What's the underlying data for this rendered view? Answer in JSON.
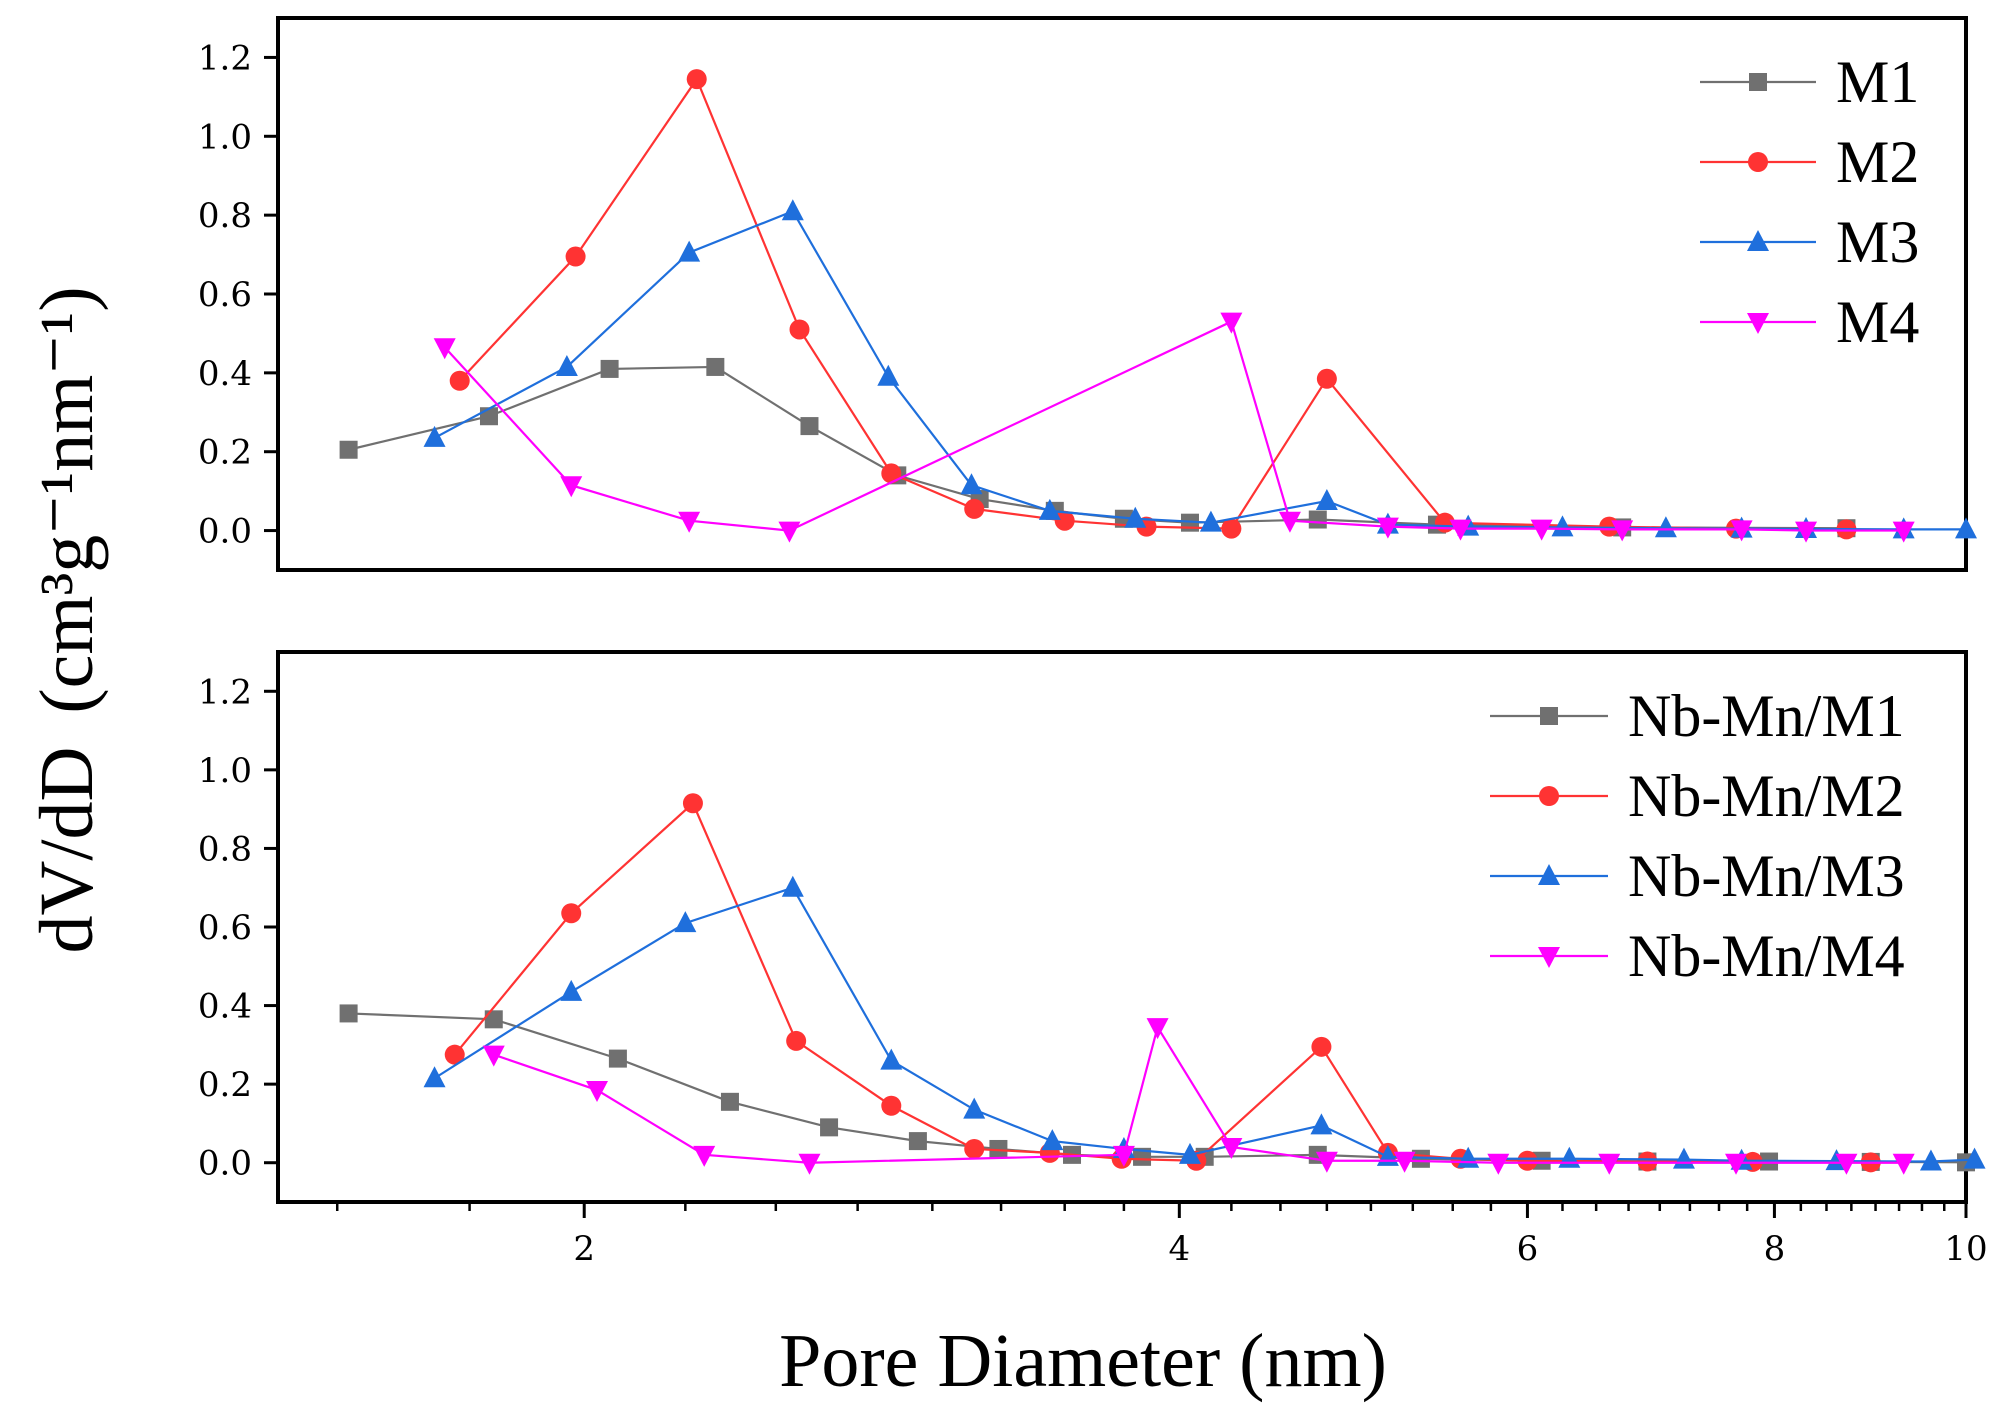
{
  "figure": {
    "ylabel_main": "dV/dD",
    "ylabel_units": "(cm³g⁻¹nm⁻¹)",
    "xlabel": "Pore Diameter (nm)"
  },
  "chart_data": [
    {
      "type": "line",
      "panel": "top",
      "x_scale": "log",
      "xlim": [
        1.4,
        10
      ],
      "ylim": [
        -0.1,
        1.3
      ],
      "xticks": [
        2,
        4,
        6,
        8,
        10
      ],
      "xtick_labels": [
        "2",
        "4",
        "6",
        "8",
        "10"
      ],
      "yticks": [
        0.0,
        0.2,
        0.4,
        0.6,
        0.8,
        1.0,
        1.2
      ],
      "ytick_labels": [
        "0.0",
        "0.2",
        "0.4",
        "0.6",
        "0.8",
        "1.0",
        "1.2"
      ],
      "legend_position": "top-right",
      "series": [
        {
          "name": "M1",
          "color": "#707070",
          "marker": "square",
          "x": [
            1.52,
            1.79,
            2.06,
            2.33,
            2.6,
            2.88,
            3.17,
            3.46,
            3.75,
            4.05,
            4.7,
            5.4,
            6.7,
            8.7
          ],
          "y": [
            0.205,
            0.29,
            0.41,
            0.415,
            0.265,
            0.14,
            0.08,
            0.05,
            0.03,
            0.02,
            0.028,
            0.015,
            0.008,
            0.006
          ]
        },
        {
          "name": "M2",
          "color": "#ff3333",
          "marker": "circle",
          "x": [
            1.73,
            1.98,
            2.28,
            2.57,
            2.86,
            3.15,
            3.5,
            3.85,
            4.25,
            4.75,
            5.45,
            6.6,
            7.65,
            8.7
          ],
          "y": [
            0.38,
            0.695,
            1.145,
            0.51,
            0.145,
            0.055,
            0.025,
            0.01,
            0.005,
            0.385,
            0.02,
            0.01,
            0.005,
            0.003
          ]
        },
        {
          "name": "M3",
          "color": "#1f6fdc",
          "marker": "triangle-up",
          "x": [
            1.68,
            1.96,
            2.26,
            2.55,
            2.85,
            3.14,
            3.44,
            3.8,
            4.15,
            4.75,
            5.1,
            5.6,
            6.25,
            7.05,
            7.7,
            8.3,
            9.3,
            10.0
          ],
          "y": [
            0.235,
            0.415,
            0.705,
            0.81,
            0.39,
            0.115,
            0.05,
            0.03,
            0.02,
            0.075,
            0.015,
            0.01,
            0.008,
            0.006,
            0.005,
            0.004,
            0.003,
            0.003
          ]
        },
        {
          "name": "M4",
          "color": "#ff00ff",
          "marker": "triangle-down",
          "x": [
            1.7,
            1.97,
            2.26,
            2.54,
            4.25,
            4.55,
            5.1,
            5.55,
            6.1,
            6.7,
            7.7,
            8.3,
            9.3
          ],
          "y": [
            0.465,
            0.115,
            0.025,
            0.0,
            0.53,
            0.025,
            0.01,
            0.005,
            0.005,
            0.003,
            0.003,
            0.0,
            0.0
          ]
        }
      ]
    },
    {
      "type": "line",
      "panel": "bottom",
      "x_scale": "log",
      "xlim": [
        1.4,
        10
      ],
      "ylim": [
        -0.1,
        1.3
      ],
      "xticks": [
        2,
        4,
        6,
        8,
        10
      ],
      "xtick_labels": [
        "2",
        "4",
        "6",
        "8",
        "10"
      ],
      "yticks": [
        0.0,
        0.2,
        0.4,
        0.6,
        0.8,
        1.0,
        1.2
      ],
      "ytick_labels": [
        "0.0",
        "0.2",
        "0.4",
        "0.6",
        "0.8",
        "1.0",
        "1.2"
      ],
      "legend_position": "top-right",
      "series": [
        {
          "name": "Nb-Mn/M1",
          "color": "#707070",
          "marker": "square",
          "x": [
            1.52,
            1.8,
            2.08,
            2.37,
            2.66,
            2.95,
            3.24,
            3.53,
            3.83,
            4.12,
            4.7,
            5.3,
            6.1,
            6.9,
            7.95,
            8.95,
            10.0
          ],
          "y": [
            0.38,
            0.365,
            0.265,
            0.155,
            0.09,
            0.055,
            0.035,
            0.02,
            0.015,
            0.015,
            0.02,
            0.01,
            0.005,
            0.003,
            0.003,
            0.002,
            0.001
          ]
        },
        {
          "name": "Nb-Mn/M2",
          "color": "#ff3333",
          "marker": "circle",
          "x": [
            1.72,
            1.97,
            2.27,
            2.56,
            2.86,
            3.15,
            3.44,
            3.74,
            4.08,
            4.72,
            5.1,
            5.55,
            6.0,
            6.9,
            7.8,
            8.95
          ],
          "y": [
            0.275,
            0.635,
            0.915,
            0.31,
            0.145,
            0.035,
            0.025,
            0.01,
            0.005,
            0.295,
            0.025,
            0.01,
            0.005,
            0.003,
            0.002,
            0.001
          ]
        },
        {
          "name": "Nb-Mn/M3",
          "color": "#1f6fdc",
          "marker": "triangle-up",
          "x": [
            1.68,
            1.97,
            2.25,
            2.55,
            2.86,
            3.15,
            3.45,
            3.75,
            4.05,
            4.72,
            5.1,
            5.6,
            6.3,
            7.2,
            7.7,
            8.6,
            9.6,
            10.1
          ],
          "y": [
            0.215,
            0.435,
            0.61,
            0.7,
            0.26,
            0.135,
            0.055,
            0.035,
            0.02,
            0.095,
            0.015,
            0.01,
            0.01,
            0.008,
            0.005,
            0.004,
            0.003,
            0.008
          ]
        },
        {
          "name": "Nb-Mn/M4",
          "color": "#ff00ff",
          "marker": "triangle-down",
          "x": [
            1.8,
            2.03,
            2.3,
            2.6,
            3.75,
            3.9,
            4.25,
            4.75,
            5.2,
            5.8,
            6.6,
            7.65,
            8.7,
            9.3
          ],
          "y": [
            0.275,
            0.185,
            0.02,
            0.0,
            0.02,
            0.345,
            0.04,
            0.005,
            0.005,
            0.0,
            0.0,
            0.0,
            0.0,
            0.0
          ]
        }
      ]
    }
  ]
}
